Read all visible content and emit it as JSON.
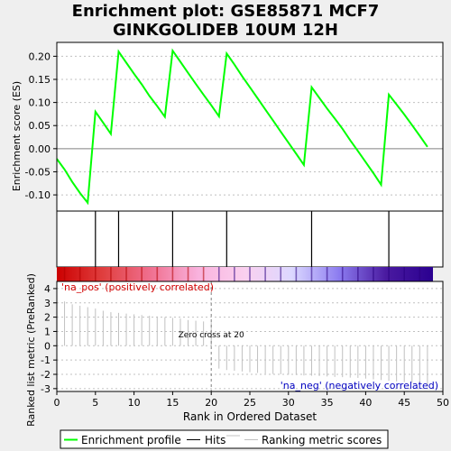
{
  "chart_data": {
    "type": "line",
    "title_lines": [
      "Enrichment plot: GSE85871 MCF7",
      "GINKGOLIDEB 10UM 12H"
    ],
    "xlabel": "Rank in Ordered Dataset",
    "xlim": [
      0,
      50
    ],
    "x_ticks": [
      0,
      5,
      10,
      15,
      20,
      25,
      30,
      35,
      40,
      45,
      50
    ],
    "es_panel": {
      "ylabel": "Enrichment score (ES)",
      "ylim": [
        -0.135,
        0.23
      ],
      "y_ticks": [
        -0.1,
        -0.05,
        0.0,
        0.05,
        0.1,
        0.15,
        0.2
      ],
      "y_tick_labels": [
        "-0.10",
        "-0.05",
        "0.00",
        "0.05",
        "0.10",
        "0.15",
        "0.20"
      ],
      "series": [
        {
          "x": [
            0,
            1,
            2,
            3,
            4,
            5,
            6,
            7,
            8,
            9,
            10,
            11,
            12,
            13,
            14,
            15,
            16,
            17,
            18,
            19,
            20,
            21,
            22,
            23,
            24,
            25,
            26,
            27,
            28,
            29,
            30,
            31,
            32,
            33,
            34,
            35,
            36,
            37,
            38,
            39,
            40,
            41,
            42,
            43,
            44,
            45,
            46,
            47,
            48
          ],
          "y": [
            -0.022,
            -0.045,
            -0.072,
            -0.096,
            -0.117,
            0.08,
            0.056,
            0.032,
            0.21,
            0.186,
            0.162,
            0.139,
            0.114,
            0.092,
            0.069,
            0.212,
            0.188,
            0.164,
            0.14,
            0.117,
            0.094,
            0.07,
            0.206,
            0.182,
            0.157,
            0.133,
            0.109,
            0.085,
            0.061,
            0.037,
            0.013,
            -0.011,
            -0.035,
            0.133,
            0.11,
            0.087,
            0.065,
            0.043,
            0.018,
            -0.005,
            -0.029,
            -0.053,
            -0.078,
            0.117,
            0.096,
            0.074,
            0.051,
            0.028,
            0.004
          ]
        }
      ]
    },
    "hits_panel": {
      "hit_positions": [
        5,
        8,
        15,
        22,
        33,
        43
      ]
    },
    "metric_panel": {
      "ylabel": "Ranked list metric (PreRanked)",
      "ylim": [
        -3.2,
        4.5
      ],
      "y_ticks": [
        -3,
        -2,
        -1,
        0,
        1,
        2,
        3,
        4
      ],
      "y_tick_labels": [
        "-3",
        "-2",
        "-1",
        "0",
        "1",
        "2",
        "3",
        "4"
      ],
      "ranks": [
        1,
        2,
        3,
        4,
        5,
        6,
        7,
        8,
        9,
        10,
        11,
        12,
        13,
        14,
        15,
        16,
        17,
        18,
        19,
        20,
        21,
        22,
        23,
        24,
        25,
        26,
        27,
        28,
        29,
        30,
        31,
        32,
        33,
        34,
        35,
        36,
        37,
        38,
        39,
        40,
        41,
        42,
        43,
        44,
        45,
        46,
        47,
        48
      ],
      "values": [
        3.1,
        2.9,
        2.8,
        2.7,
        2.6,
        2.45,
        2.35,
        2.3,
        2.25,
        2.2,
        2.15,
        2.1,
        2.05,
        2.0,
        1.95,
        1.9,
        1.8,
        1.75,
        1.7,
        1.65,
        -1.6,
        -1.7,
        -1.75,
        -1.8,
        -1.85,
        -1.9,
        -1.95,
        -1.98,
        -2.0,
        -2.03,
        -2.05,
        -2.08,
        -2.1,
        -2.12,
        -2.15,
        -2.18,
        -2.2,
        -2.23,
        -2.25,
        -2.3,
        -2.35,
        -2.4,
        -2.45,
        -2.5,
        -2.55,
        -2.6,
        -2.7,
        -2.8
      ],
      "zero_cross_rank": 20,
      "zero_cross_label": "Zero cross at 20",
      "pos_label": "'na_pos' (positively correlated)",
      "neg_label": "'na_neg' (negatively correlated)"
    },
    "legend": {
      "placement": "bottom",
      "entries": [
        {
          "label": "Enrichment profile",
          "color": "#00ff00"
        },
        {
          "label": "Hits",
          "color": "#000000"
        },
        {
          "label": "Ranking metric scores",
          "color": "#c0c0c0"
        }
      ]
    },
    "colors": {
      "es_line": "#00ff00",
      "hit_line": "#000000",
      "metric_bar": "#c0c0c0",
      "zero_line": "#808080",
      "grid": "#c0c0c0",
      "pos_text": "#d00000",
      "neg_text": "#0000c0"
    },
    "color_bar": {
      "stops": [
        "#cc0000",
        "#e04040",
        "#f07090",
        "#f9b2dd",
        "#fad0ef",
        "#dcd8ff",
        "#8c7cf0",
        "#4a1aa0",
        "#2a0090"
      ]
    }
  }
}
